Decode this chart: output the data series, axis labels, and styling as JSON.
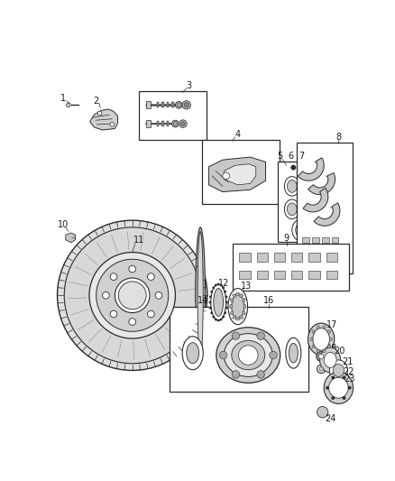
{
  "bg_color": "#ffffff",
  "figure_width": 4.38,
  "figure_height": 5.33,
  "dpi": 100,
  "line_color": "#2a2a2a",
  "label_color": "#1a1a1a",
  "fill_light": "#e8e8e8",
  "fill_mid": "#c8c8c8",
  "fill_dark": "#888888",
  "box_edge": "#2a2a2a"
}
